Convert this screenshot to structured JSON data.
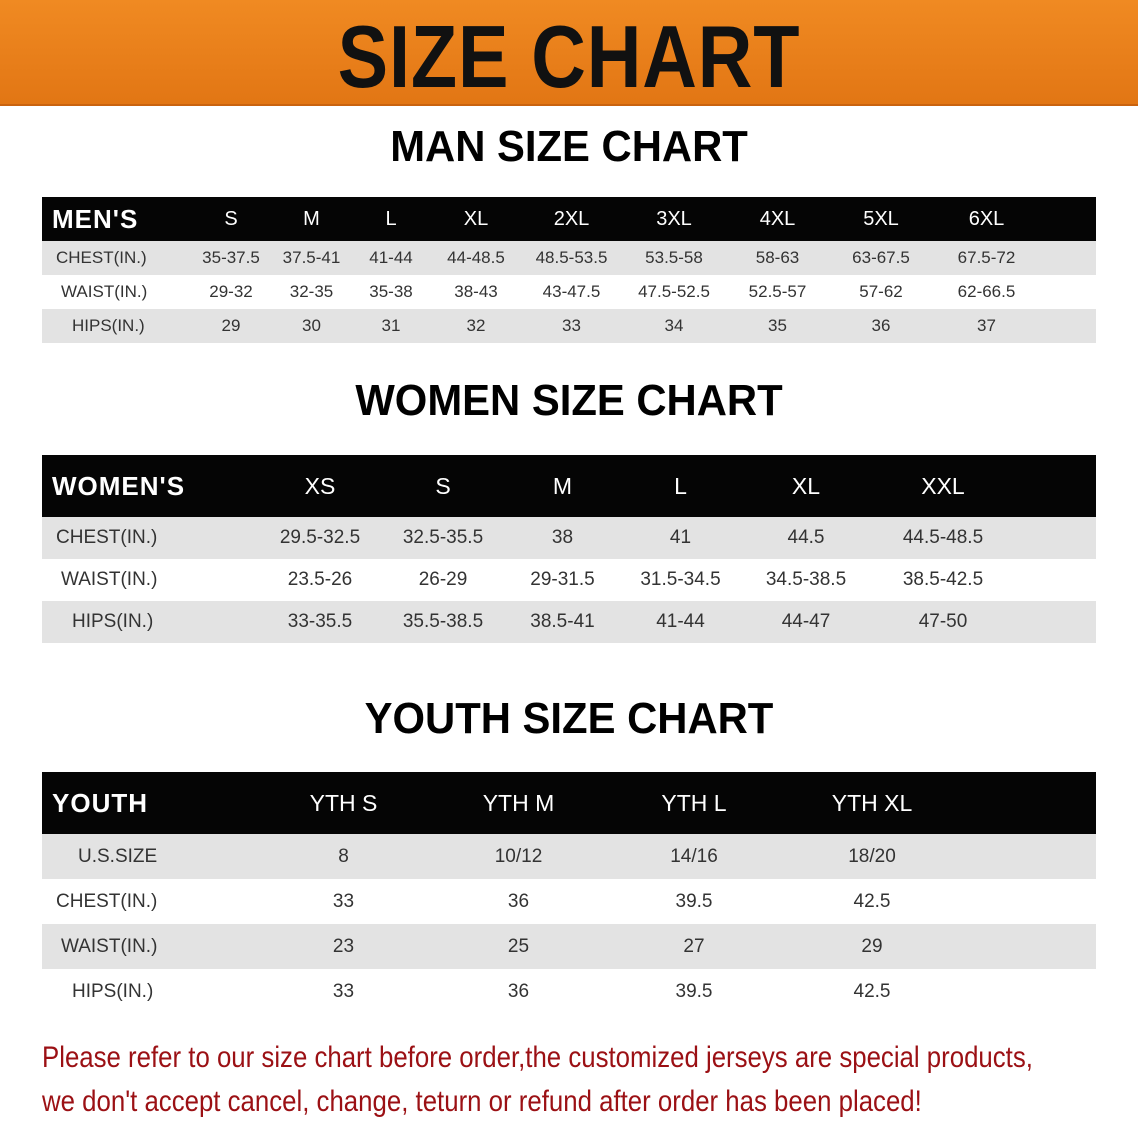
{
  "banner": {
    "title": "SIZE CHART",
    "color": "#e8801e"
  },
  "men": {
    "title": "MAN SIZE CHART",
    "header": [
      "MEN'S",
      "S",
      "M",
      "L",
      "XL",
      "2XL",
      "3XL",
      "4XL",
      "5XL",
      "6XL"
    ],
    "rows": [
      [
        "CHEST(IN.)",
        "35-37.5",
        "37.5-41",
        "41-44",
        "44-48.5",
        "48.5-53.5",
        "53.5-58",
        "58-63",
        "63-67.5",
        "67.5-72"
      ],
      [
        "WAIST(IN.)",
        "29-32",
        "32-35",
        "35-38",
        "38-43",
        "43-47.5",
        "47.5-52.5",
        "52.5-57",
        "57-62",
        "62-66.5"
      ],
      [
        "HIPS(IN.)",
        "29",
        "30",
        "31",
        "32",
        "33",
        "34",
        "35",
        "36",
        "37"
      ]
    ]
  },
  "women": {
    "title": "WOMEN SIZE CHART",
    "header": [
      "WOMEN'S",
      "XS",
      "S",
      "M",
      "L",
      "XL",
      "XXL"
    ],
    "rows": [
      [
        "CHEST(IN.)",
        "29.5-32.5",
        "32.5-35.5",
        "38",
        "41",
        "44.5",
        "44.5-48.5"
      ],
      [
        "WAIST(IN.)",
        "23.5-26",
        "26-29",
        "29-31.5",
        "31.5-34.5",
        "34.5-38.5",
        "38.5-42.5"
      ],
      [
        "HIPS(IN.)",
        "33-35.5",
        "35.5-38.5",
        "38.5-41",
        "41-44",
        "44-47",
        "47-50"
      ]
    ]
  },
  "youth": {
    "title": "YOUTH SIZE CHART",
    "header": [
      "YOUTH",
      "YTH S",
      "YTH M",
      "YTH L",
      "YTH XL"
    ],
    "rows": [
      [
        "U.S.SIZE",
        "8",
        "10/12",
        "14/16",
        "18/20"
      ],
      [
        "CHEST(IN.)",
        "33",
        "36",
        "39.5",
        "42.5"
      ],
      [
        "WAIST(IN.)",
        "23",
        "25",
        "27",
        "29"
      ],
      [
        "HIPS(IN.)",
        "33",
        "36",
        "39.5",
        "42.5"
      ]
    ]
  },
  "notice": {
    "line1": "Please refer to our size chart before order,the customized jerseys are special products,",
    "line2": "we don't accept cancel, change, teturn or refund after order has been placed!",
    "color": "#9b1014"
  }
}
